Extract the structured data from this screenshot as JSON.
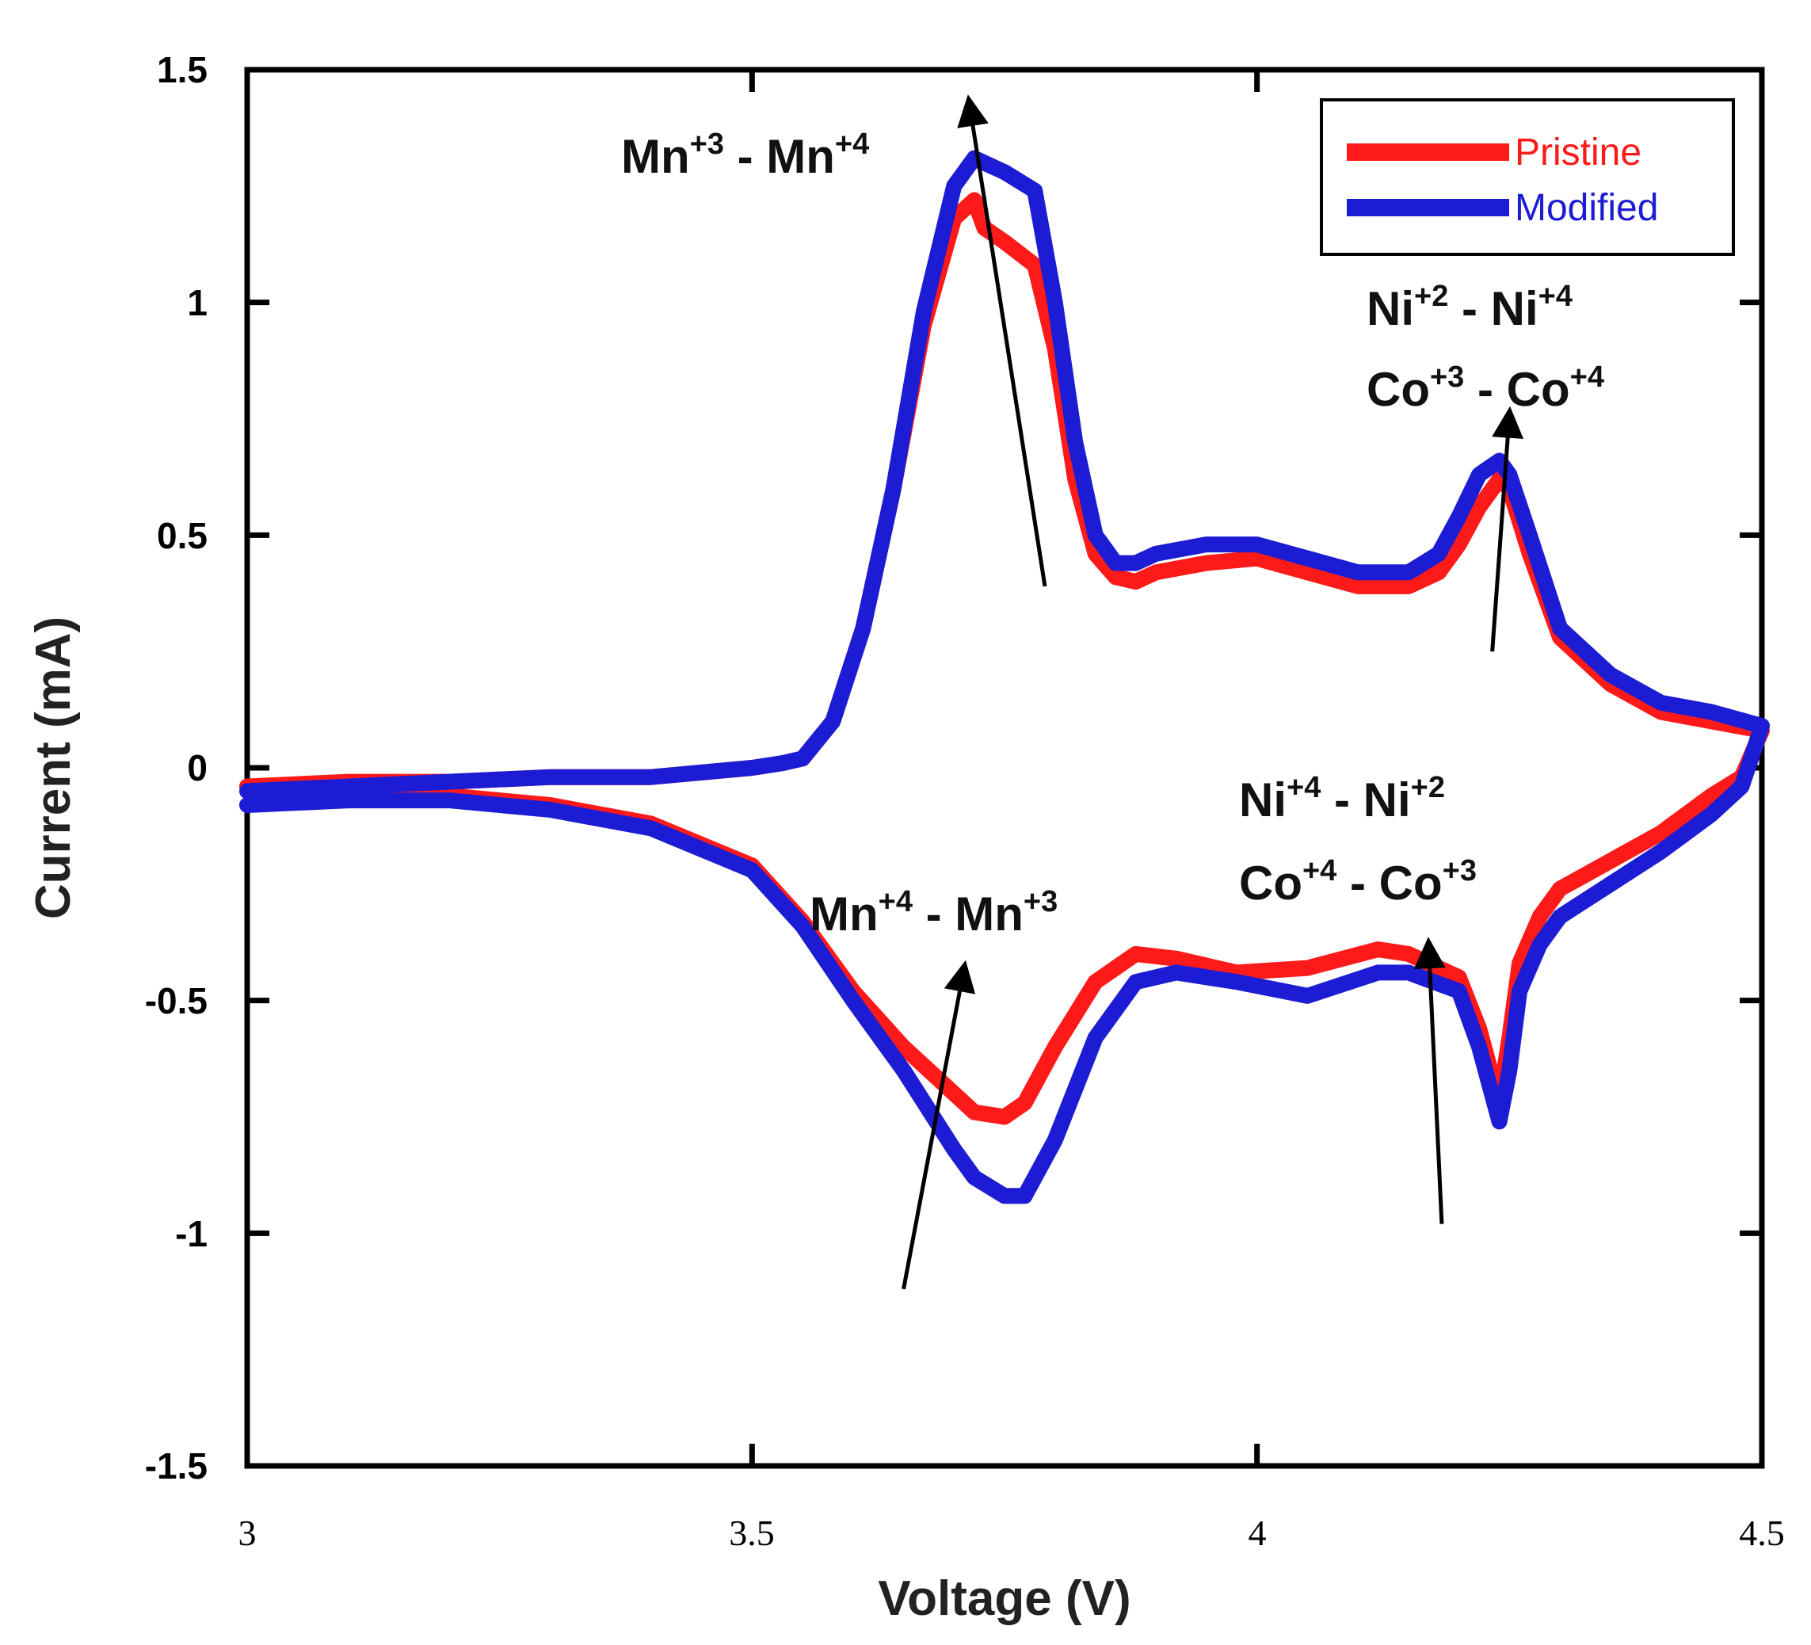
{
  "chart_data": {
    "type": "line",
    "title": "",
    "xlabel": "Voltage (V)",
    "ylabel": "Current (mA)",
    "xlim": [
      3,
      4.5
    ],
    "ylim": [
      -1.5,
      1.5
    ],
    "xticks": [
      3,
      3.5,
      4,
      4.5
    ],
    "xtick_labels": [
      "3",
      "3.5",
      "4",
      "4.5"
    ],
    "yticks": [
      1.5,
      1,
      0.5,
      0,
      -0.5,
      -1,
      -1.5
    ],
    "ytick_labels": [
      "1.5",
      "1",
      "0.5",
      "0",
      "-0.5",
      "-1",
      "-1.5"
    ],
    "grid": false,
    "legend_position": "top-right",
    "series": [
      {
        "name": "Pristine",
        "color": "#ff1a1a",
        "x": [
          3.0,
          3.1,
          3.2,
          3.3,
          3.4,
          3.5,
          3.53,
          3.55,
          3.58,
          3.61,
          3.64,
          3.67,
          3.7,
          3.72,
          3.73,
          3.75,
          3.78,
          3.8,
          3.82,
          3.84,
          3.86,
          3.88,
          3.9,
          3.95,
          4.0,
          4.05,
          4.1,
          4.15,
          4.18,
          4.2,
          4.22,
          4.24,
          4.25,
          4.27,
          4.3,
          4.35,
          4.4,
          4.45,
          4.5,
          4.48,
          4.45,
          4.4,
          4.35,
          4.3,
          4.28,
          4.26,
          4.25,
          4.24,
          4.22,
          4.2,
          4.15,
          4.12,
          4.05,
          3.98,
          3.92,
          3.88,
          3.84,
          3.8,
          3.77,
          3.75,
          3.72,
          3.7,
          3.65,
          3.6,
          3.55,
          3.5,
          3.4,
          3.3,
          3.2,
          3.1,
          3.0
        ],
        "y": [
          -0.04,
          -0.03,
          -0.03,
          -0.02,
          -0.02,
          0.0,
          0.01,
          0.02,
          0.1,
          0.3,
          0.6,
          0.95,
          1.18,
          1.22,
          1.16,
          1.13,
          1.08,
          0.9,
          0.62,
          0.46,
          0.41,
          0.4,
          0.42,
          0.44,
          0.45,
          0.42,
          0.39,
          0.39,
          0.42,
          0.48,
          0.56,
          0.62,
          0.6,
          0.46,
          0.28,
          0.18,
          0.12,
          0.1,
          0.08,
          -0.02,
          -0.06,
          -0.14,
          -0.2,
          -0.26,
          -0.32,
          -0.42,
          -0.58,
          -0.72,
          -0.56,
          -0.45,
          -0.4,
          -0.39,
          -0.43,
          -0.44,
          -0.41,
          -0.4,
          -0.46,
          -0.6,
          -0.72,
          -0.75,
          -0.74,
          -0.7,
          -0.6,
          -0.48,
          -0.33,
          -0.21,
          -0.12,
          -0.08,
          -0.06,
          -0.05,
          -0.04
        ]
      },
      {
        "name": "Modified",
        "color": "#1c1cd4",
        "x": [
          3.0,
          3.1,
          3.2,
          3.3,
          3.4,
          3.5,
          3.53,
          3.55,
          3.58,
          3.61,
          3.64,
          3.67,
          3.7,
          3.72,
          3.73,
          3.75,
          3.78,
          3.8,
          3.82,
          3.84,
          3.86,
          3.88,
          3.9,
          3.95,
          4.0,
          4.05,
          4.1,
          4.15,
          4.18,
          4.2,
          4.22,
          4.24,
          4.25,
          4.27,
          4.3,
          4.35,
          4.4,
          4.45,
          4.5,
          4.48,
          4.45,
          4.4,
          4.35,
          4.3,
          4.28,
          4.26,
          4.25,
          4.24,
          4.22,
          4.2,
          4.15,
          4.12,
          4.05,
          3.98,
          3.92,
          3.88,
          3.84,
          3.8,
          3.77,
          3.75,
          3.72,
          3.7,
          3.65,
          3.6,
          3.55,
          3.5,
          3.4,
          3.3,
          3.2,
          3.1,
          3.0
        ],
        "y": [
          -0.05,
          -0.04,
          -0.03,
          -0.02,
          -0.02,
          0.0,
          0.01,
          0.02,
          0.1,
          0.3,
          0.6,
          0.98,
          1.25,
          1.31,
          1.3,
          1.28,
          1.24,
          1.0,
          0.7,
          0.5,
          0.44,
          0.44,
          0.46,
          0.48,
          0.48,
          0.45,
          0.42,
          0.42,
          0.46,
          0.54,
          0.63,
          0.66,
          0.63,
          0.5,
          0.3,
          0.2,
          0.14,
          0.12,
          0.09,
          -0.04,
          -0.1,
          -0.18,
          -0.25,
          -0.32,
          -0.38,
          -0.48,
          -0.65,
          -0.76,
          -0.6,
          -0.48,
          -0.44,
          -0.44,
          -0.49,
          -0.46,
          -0.44,
          -0.46,
          -0.58,
          -0.8,
          -0.92,
          -0.92,
          -0.88,
          -0.82,
          -0.65,
          -0.5,
          -0.34,
          -0.22,
          -0.13,
          -0.09,
          -0.07,
          -0.07,
          -0.08
        ]
      }
    ],
    "annotations": [
      {
        "main": [
          "Mn",
          " - Mn"
        ],
        "sup": [
          "+3",
          "+4"
        ],
        "arrow_from": [
          3.79,
          0.39
        ],
        "arrow_to": [
          3.715,
          1.43
        ]
      },
      {
        "main": [
          "Ni",
          " - Ni"
        ],
        "sup": [
          "+2",
          "+4"
        ],
        "arrow_from": null,
        "arrow_to": null
      },
      {
        "main": [
          "Co",
          " - Co"
        ],
        "sup": [
          "+3",
          "+4"
        ],
        "arrow_from": [
          4.233,
          0.25
        ],
        "arrow_to": [
          4.25,
          0.76
        ]
      },
      {
        "main": [
          "Ni",
          " - Ni"
        ],
        "sup": [
          "+4",
          "+2"
        ],
        "arrow_from": null,
        "arrow_to": null
      },
      {
        "main": [
          "Co",
          " - Co"
        ],
        "sup": [
          "+4",
          "+3"
        ],
        "arrow_from": [
          4.183,
          -0.98
        ],
        "arrow_to": [
          4.17,
          -0.38
        ]
      },
      {
        "main": [
          "Mn",
          " - Mn"
        ],
        "sup": [
          "+4",
          "+3"
        ],
        "arrow_from": [
          3.65,
          -1.12
        ],
        "arrow_to": [
          3.71,
          -0.43
        ]
      }
    ]
  }
}
